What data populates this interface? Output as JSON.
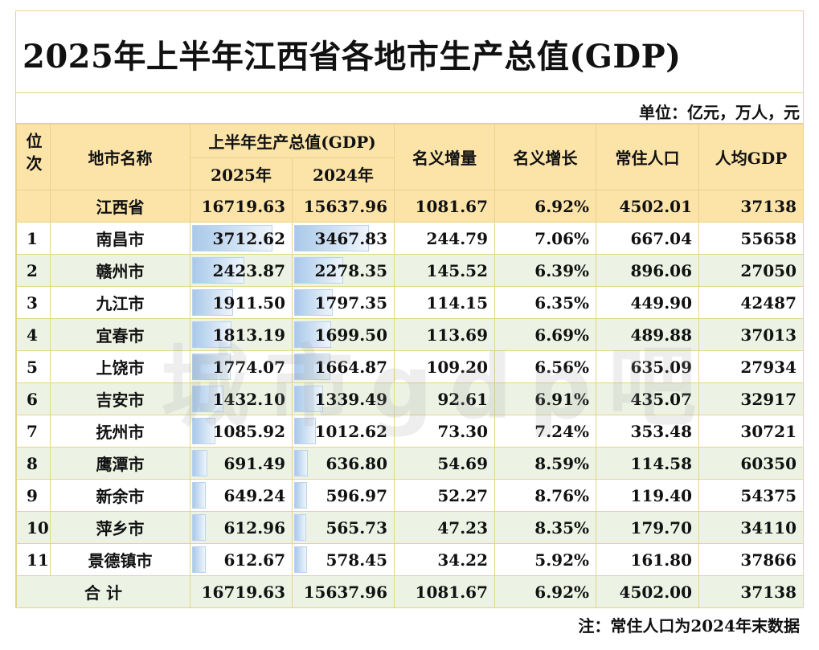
{
  "title": "2025年上半年江西省各地市生产总值(GDP)",
  "unit": "单位：亿元，万人，元",
  "headers": {
    "rank": "位次",
    "city": "地市名称",
    "gdp_group": "上半年生产总值(GDP)",
    "y2025": "2025年",
    "y2024": "2024年",
    "nominal_increase": "名义增量",
    "nominal_growth": "名义增长",
    "population": "常住人口",
    "per_capita": "人均GDP"
  },
  "province": {
    "name": "江西省",
    "y2025": "16719.63",
    "y2024": "15637.96",
    "increase": "1081.67",
    "growth": "6.92%",
    "population": "4502.01",
    "per_capita": "37138"
  },
  "rows": [
    {
      "rank": "1",
      "name": "南昌市",
      "y2025": "3712.62",
      "y2024": "3467.83",
      "increase": "244.79",
      "growth": "7.06%",
      "population": "667.04",
      "per_capita": "55658",
      "v2025": 3712.62,
      "v2024": 3467.83
    },
    {
      "rank": "2",
      "name": "赣州市",
      "y2025": "2423.87",
      "y2024": "2278.35",
      "increase": "145.52",
      "growth": "6.39%",
      "population": "896.06",
      "per_capita": "27050",
      "v2025": 2423.87,
      "v2024": 2278.35
    },
    {
      "rank": "3",
      "name": "九江市",
      "y2025": "1911.50",
      "y2024": "1797.35",
      "increase": "114.15",
      "growth": "6.35%",
      "population": "449.90",
      "per_capita": "42487",
      "v2025": 1911.5,
      "v2024": 1797.35
    },
    {
      "rank": "4",
      "name": "宜春市",
      "y2025": "1813.19",
      "y2024": "1699.50",
      "increase": "113.69",
      "growth": "6.69%",
      "population": "489.88",
      "per_capita": "37013",
      "v2025": 1813.19,
      "v2024": 1699.5
    },
    {
      "rank": "5",
      "name": "上饶市",
      "y2025": "1774.07",
      "y2024": "1664.87",
      "increase": "109.20",
      "growth": "6.56%",
      "population": "635.09",
      "per_capita": "27934",
      "v2025": 1774.07,
      "v2024": 1664.87
    },
    {
      "rank": "6",
      "name": "吉安市",
      "y2025": "1432.10",
      "y2024": "1339.49",
      "increase": "92.61",
      "growth": "6.91%",
      "population": "435.07",
      "per_capita": "32917",
      "v2025": 1432.1,
      "v2024": 1339.49
    },
    {
      "rank": "7",
      "name": "抚州市",
      "y2025": "1085.92",
      "y2024": "1012.62",
      "increase": "73.30",
      "growth": "7.24%",
      "population": "353.48",
      "per_capita": "30721",
      "v2025": 1085.92,
      "v2024": 1012.62
    },
    {
      "rank": "8",
      "name": "鹰潭市",
      "y2025": "691.49",
      "y2024": "636.80",
      "increase": "54.69",
      "growth": "8.59%",
      "population": "114.58",
      "per_capita": "60350",
      "v2025": 691.49,
      "v2024": 636.8
    },
    {
      "rank": "9",
      "name": "新余市",
      "y2025": "649.24",
      "y2024": "596.97",
      "increase": "52.27",
      "growth": "8.76%",
      "population": "119.40",
      "per_capita": "54375",
      "v2025": 649.24,
      "v2024": 596.97
    },
    {
      "rank": "10",
      "name": "萍乡市",
      "y2025": "612.96",
      "y2024": "565.73",
      "increase": "47.23",
      "growth": "8.35%",
      "population": "179.70",
      "per_capita": "34110",
      "v2025": 612.96,
      "v2024": 565.73
    },
    {
      "rank": "11",
      "name": "景德镇市",
      "y2025": "612.67",
      "y2024": "578.45",
      "increase": "34.22",
      "growth": "5.92%",
      "population": "161.80",
      "per_capita": "37866",
      "v2025": 612.67,
      "v2024": 578.45
    }
  ],
  "total": {
    "label": "合 计",
    "y2025": "16719.63",
    "y2024": "15637.96",
    "increase": "1081.67",
    "growth": "6.92%",
    "population": "4502.00",
    "per_capita": "37138"
  },
  "bar_max": 3712.62,
  "note": "注：常住人口为2024年末数据",
  "watermark": "城市gdp吧"
}
